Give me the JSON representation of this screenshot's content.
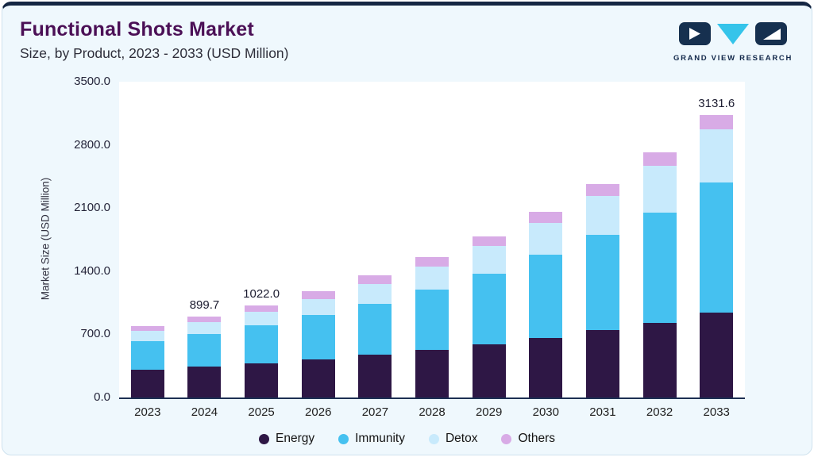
{
  "header": {
    "title": "Functional Shots Market",
    "subtitle": "Size, by Product, 2023 - 2033 (USD Million)"
  },
  "logo": {
    "text": "GRAND VIEW RESEARCH"
  },
  "colors": {
    "accent_navy": "#152743",
    "logo_cyan": "#35c4ea",
    "title_purple": "#4b1056",
    "card_background": "#eff8fd"
  },
  "chart_data": {
    "type": "bar",
    "stacked": true,
    "title": "Functional Shots Market",
    "subtitle": "Size, by Product, 2023 - 2033 (USD Million)",
    "xlabel": "",
    "ylabel": "Market Size (USD Million)",
    "ylim": [
      0,
      3500
    ],
    "yticks": [
      "0.0",
      "700.0",
      "1400.0",
      "2100.0",
      "2800.0",
      "3500.0"
    ],
    "grid": false,
    "legend_position": "bottom",
    "categories": [
      "2023",
      "2024",
      "2025",
      "2026",
      "2027",
      "2028",
      "2029",
      "2030",
      "2031",
      "2032",
      "2033"
    ],
    "series": [
      {
        "name": "Energy",
        "color": "#2E1745",
        "values": [
          309,
          341.9,
          378.1,
          423,
          473,
          528,
          590,
          658,
          744,
          826,
          939.5
        ]
      },
      {
        "name": "Immunity",
        "color": "#45C1F0",
        "values": [
          317,
          364.4,
          419.0,
          488,
          568,
          668,
          786,
          925,
          1063,
          1223,
          1440.5
        ]
      },
      {
        "name": "Detox",
        "color": "#C8EAFC",
        "values": [
          110.8,
          130.2,
          153.3,
          182,
          216,
          258,
          304,
          349,
          425,
          517,
          595.0
        ]
      },
      {
        "name": "Others",
        "color": "#D8ABE6",
        "values": [
          55,
          63.2,
          71.6,
          82,
          94,
          100,
          107,
          123,
          131,
          152,
          156.6
        ]
      }
    ],
    "totals": [
      791.8,
      899.7,
      1022.0,
      1175,
      1351,
      1554,
      1787,
      2055,
      2363,
      2718,
      3131.6
    ],
    "bar_labels": {
      "2024": "899.7",
      "2025": "1022.0",
      "2033": "3131.6"
    }
  }
}
